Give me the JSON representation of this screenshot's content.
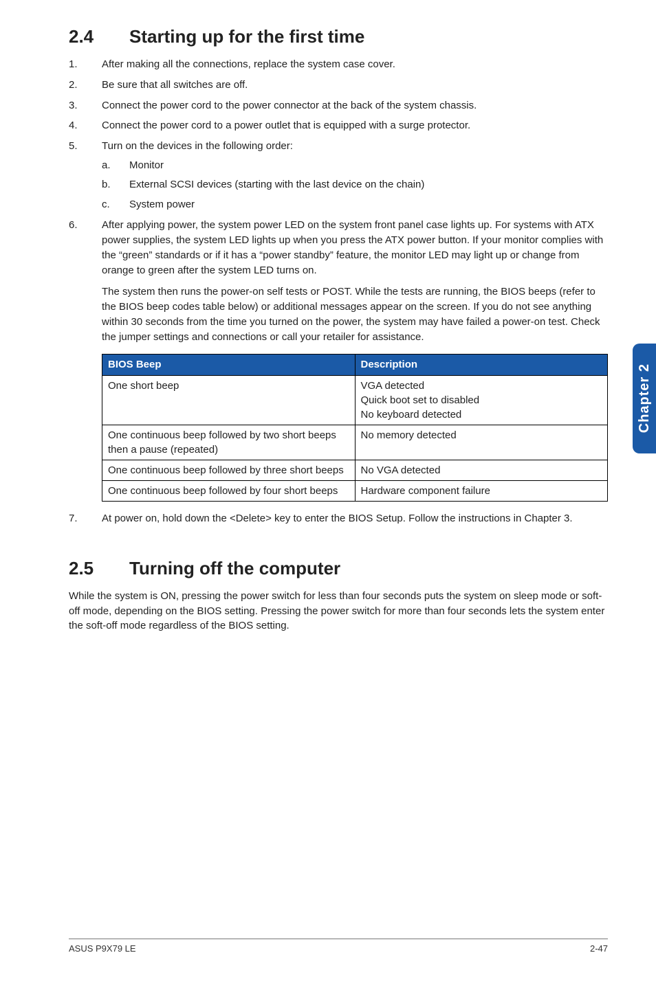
{
  "colors": {
    "table_header_bg": "#1b5aa7",
    "side_tab_bg": "#1b5aa7",
    "text": "#222222",
    "border": "#000000",
    "footer_rule": "#777777"
  },
  "section24": {
    "number": "2.4",
    "title": "Starting up for the first time",
    "steps": [
      {
        "n": "1.",
        "text": "After making all the connections, replace the system case cover."
      },
      {
        "n": "2.",
        "text": "Be sure that all switches are off."
      },
      {
        "n": "3.",
        "text": "Connect the power cord to the power connector at the back of the system chassis."
      },
      {
        "n": "4.",
        "text": "Connect the power cord to a power outlet that is equipped with a surge protector."
      },
      {
        "n": "5.",
        "text": "Turn on the devices in the following order:",
        "sub": [
          {
            "s": "a.",
            "text": "Monitor"
          },
          {
            "s": "b.",
            "text": "External SCSI devices (starting with the last device on the chain)"
          },
          {
            "s": "c.",
            "text": "System power"
          }
        ]
      },
      {
        "n": "6.",
        "text": "After applying power, the system power LED on the system front panel case lights up. For systems with ATX power supplies, the system LED lights up when you press the ATX power button. If your monitor complies with the “green” standards or if it has a “power standby” feature, the monitor LED may light up or change from orange to green after the system LED turns on.",
        "para2": "The system then runs the power-on self tests or POST. While the tests are running, the BIOS beeps (refer to the BIOS beep codes table below) or additional messages appear on the screen. If you do not see anything within 30 seconds from the time you turned on the power, the system may have failed a power-on test. Check the jumper settings and connections or call your retailer for assistance."
      }
    ],
    "table": {
      "headers": [
        "BIOS Beep",
        "Description"
      ],
      "rows": [
        [
          "One short beep",
          "VGA detected\nQuick boot set to disabled\nNo keyboard detected"
        ],
        [
          "One continuous beep followed by two short beeps then a pause (repeated)",
          "No memory detected"
        ],
        [
          "One continuous beep followed by three short beeps",
          "No VGA detected"
        ],
        [
          "One continuous beep followed by four short beeps",
          "Hardware component failure"
        ]
      ]
    },
    "step7": {
      "n": "7.",
      "text": "At power on, hold down the <Delete> key to enter the BIOS Setup. Follow the instructions in Chapter 3."
    }
  },
  "section25": {
    "number": "2.5",
    "title": "Turning off the computer",
    "body": "While the system is ON, pressing the power switch for less than four seconds puts the system on sleep mode or soft-off mode, depending on the BIOS setting. Pressing the power switch for more than four seconds lets the system enter the soft-off mode regardless of the BIOS setting."
  },
  "side_tab": "Chapter 2",
  "footer": {
    "left": "ASUS P9X79 LE",
    "right": "2-47"
  }
}
